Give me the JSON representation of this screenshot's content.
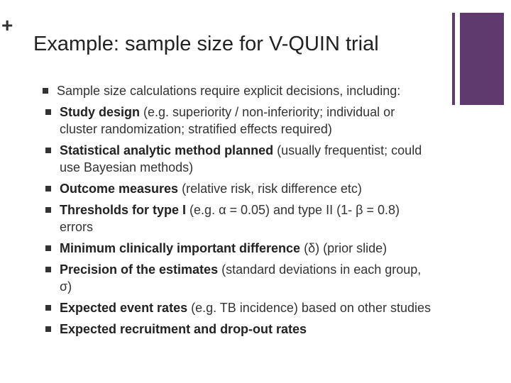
{
  "slide": {
    "marker": "+",
    "title": "Example: sample size for V-QUIN trial",
    "bullets": [
      {
        "text": "Sample size calculations require explicit decisions, including:",
        "items": [
          {
            "bold": "Study design",
            "text": "(e.g. superiority / non-inferiority; individual or cluster randomization; stratified effects required)"
          },
          {
            "bold": "Statistical analytic method planned",
            "text": "(usually frequentist; could use Bayesian methods)"
          },
          {
            "bold": "Outcome measures",
            "text": "(relative risk, risk difference etc)"
          },
          {
            "bold": "Thresholds for type I",
            "text": "(e.g. α = 0.05) and type II (1- β = 0.8) errors"
          },
          {
            "bold": "Minimum clinically important difference",
            "text": "(δ) (prior slide)"
          },
          {
            "bold": "Precision of the estimates",
            "text": "(standard deviations in each group, σ)"
          },
          {
            "bold": "Expected event rates",
            "text": "(e.g. TB incidence) based on other studies"
          },
          {
            "bold": "Expected recruitment and drop-out rates"
          }
        ]
      }
    ]
  }
}
